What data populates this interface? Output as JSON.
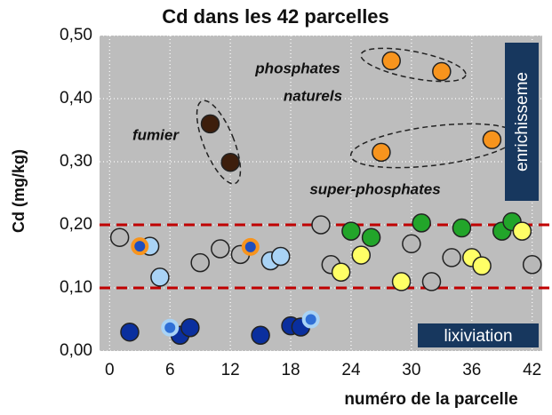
{
  "chart_data": {
    "type": "scatter",
    "title": "Cd dans les 42 parcelles",
    "ylabel": "Cd (mg/kg)",
    "xlabel": "numéro de la parcelle",
    "xlim": [
      -1,
      43
    ],
    "ylim": [
      0,
      0.5
    ],
    "xticks": [
      0,
      6,
      12,
      18,
      24,
      30,
      36,
      42
    ],
    "yticks": [
      {
        "value": 0,
        "label": "0,00"
      },
      {
        "value": 0.1,
        "label": "0,10"
      },
      {
        "value": 0.2,
        "label": "0,20"
      },
      {
        "value": 0.3,
        "label": "0,30"
      },
      {
        "value": 0.4,
        "label": "0,40"
      },
      {
        "value": 0.5,
        "label": "0,50"
      }
    ],
    "grid": true,
    "hlines": [
      0.2,
      0.1
    ],
    "hline_color": "#c00000",
    "annotations": [
      "fumier",
      "phosphates",
      "naturels",
      "super-phosphates",
      "enrichisseme",
      "lixiviation"
    ],
    "series": [
      {
        "color": "#b8b8b8",
        "x": [
          1,
          9,
          11,
          13,
          21,
          22,
          30,
          32,
          34,
          42
        ],
        "y": [
          0.18,
          0.14,
          0.162,
          0.153,
          0.2,
          0.137,
          0.17,
          0.11,
          0.148,
          0.137
        ]
      },
      {
        "color": "#0a2f9e",
        "x": [
          2,
          7,
          8,
          15,
          18,
          19
        ],
        "y": [
          0.03,
          0.025,
          0.037,
          0.025,
          0.04,
          0.038
        ]
      },
      {
        "color": "#a9d3f5",
        "x": [
          4,
          5,
          16,
          17
        ],
        "y": [
          0.166,
          0.117,
          0.143,
          0.15
        ]
      },
      {
        "color": "#2f6fd6",
        "ring": "#a9d3f5",
        "x": [
          6,
          20
        ],
        "y": [
          0.037,
          0.05
        ]
      },
      {
        "color": "#1f4fbf",
        "ring": "#f7941d",
        "x": [
          3,
          14
        ],
        "y": [
          0.166,
          0.165
        ]
      },
      {
        "color": "#3d1e0c",
        "x": [
          10,
          12
        ],
        "y": [
          0.36,
          0.299
        ]
      },
      {
        "color": "#f7941d",
        "x": [
          27,
          28,
          33,
          38
        ],
        "y": [
          0.315,
          0.46,
          0.443,
          0.335
        ]
      },
      {
        "color": "#22a52a",
        "x": [
          24,
          26,
          31,
          35,
          39,
          40
        ],
        "y": [
          0.19,
          0.18,
          0.203,
          0.195,
          0.19,
          0.205
        ]
      },
      {
        "color": "#ffff66",
        "x": [
          23,
          25,
          29,
          36,
          37,
          41
        ],
        "y": [
          0.125,
          0.152,
          0.11,
          0.148,
          0.135,
          0.19
        ]
      }
    ]
  }
}
